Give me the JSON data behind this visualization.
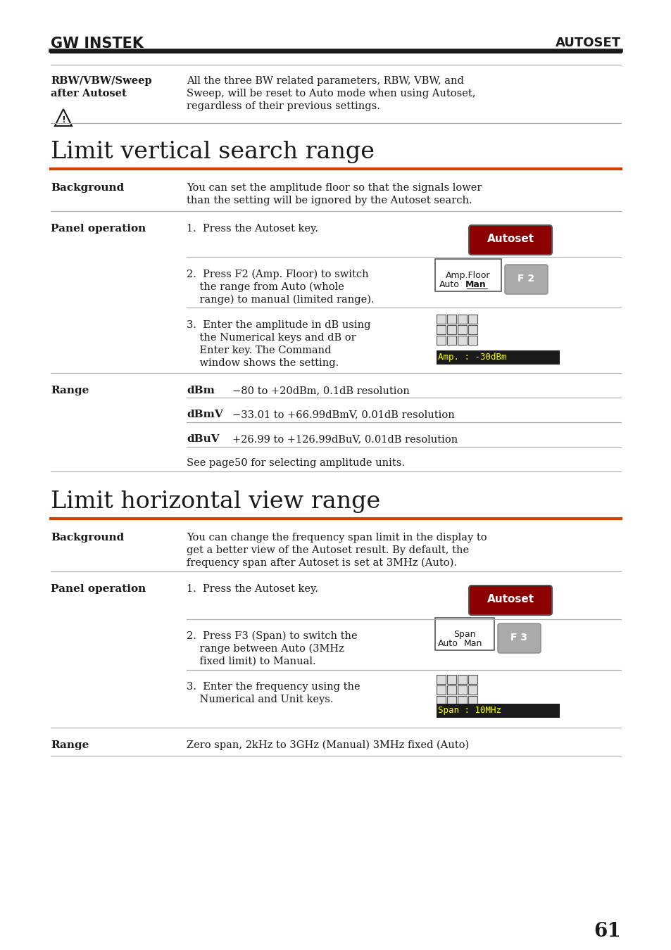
{
  "bg_color": "#ffffff",
  "text_color": "#000000",
  "header_logo": "GW INSTEK",
  "header_right": "AUTOSET",
  "section1_title": "Limit vertical search range",
  "section2_title": "Limit horizontal view range",
  "orange_line_color": "#cc4400",
  "dark_line_color": "#1a1a1a",
  "autoset_btn_color": "#8b0000",
  "autoset_btn_text": "Autoset",
  "f2_btn_color": "#888888",
  "f2_btn_text": "F 2",
  "f3_btn_color": "#888888",
  "f3_btn_text": "F 3",
  "page_number": "61"
}
